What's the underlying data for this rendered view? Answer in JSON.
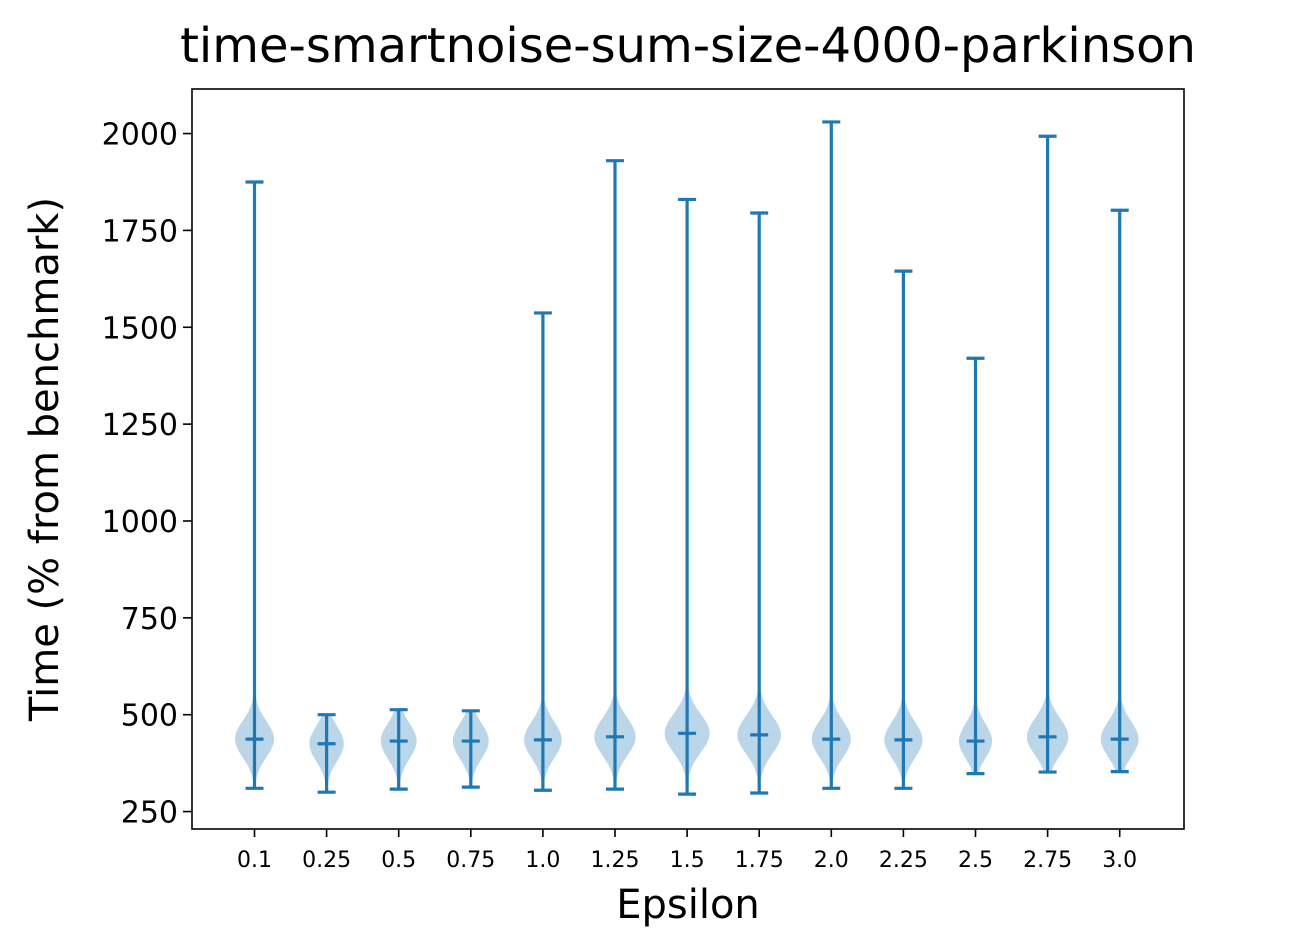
{
  "chart_data": {
    "type": "violin",
    "title": "time-smartnoise-sum-size-4000-parkinson",
    "xlabel": "Epsilon",
    "ylabel": "Time (% from benchmark)",
    "ylim": [
      205,
      2115
    ],
    "yticks": [
      250,
      500,
      750,
      1000,
      1250,
      1500,
      1750,
      2000
    ],
    "categories": [
      "0.1",
      "0.25",
      "0.5",
      "0.75",
      "1.0",
      "1.25",
      "1.5",
      "1.75",
      "2.0",
      "2.25",
      "2.5",
      "2.75",
      "3.0"
    ],
    "min": [
      310,
      300,
      308,
      313,
      305,
      308,
      295,
      298,
      310,
      310,
      348,
      352,
      353
    ],
    "max": [
      1875,
      500,
      513,
      510,
      1537,
      1930,
      1830,
      1795,
      2030,
      1645,
      1420,
      1993,
      1802
    ],
    "mean": [
      437,
      425,
      432,
      432,
      435,
      443,
      452,
      448,
      437,
      435,
      432,
      443,
      437
    ],
    "spread": [
      0.85,
      0.75,
      0.78,
      0.78,
      0.82,
      0.9,
      0.98,
      0.95,
      0.85,
      0.83,
      0.72,
      0.9,
      0.82
    ],
    "grid": false,
    "legend": "none",
    "colors": {
      "line": "#1f77b4",
      "body": "#1f77b4",
      "body_opacity": 0.3
    }
  }
}
